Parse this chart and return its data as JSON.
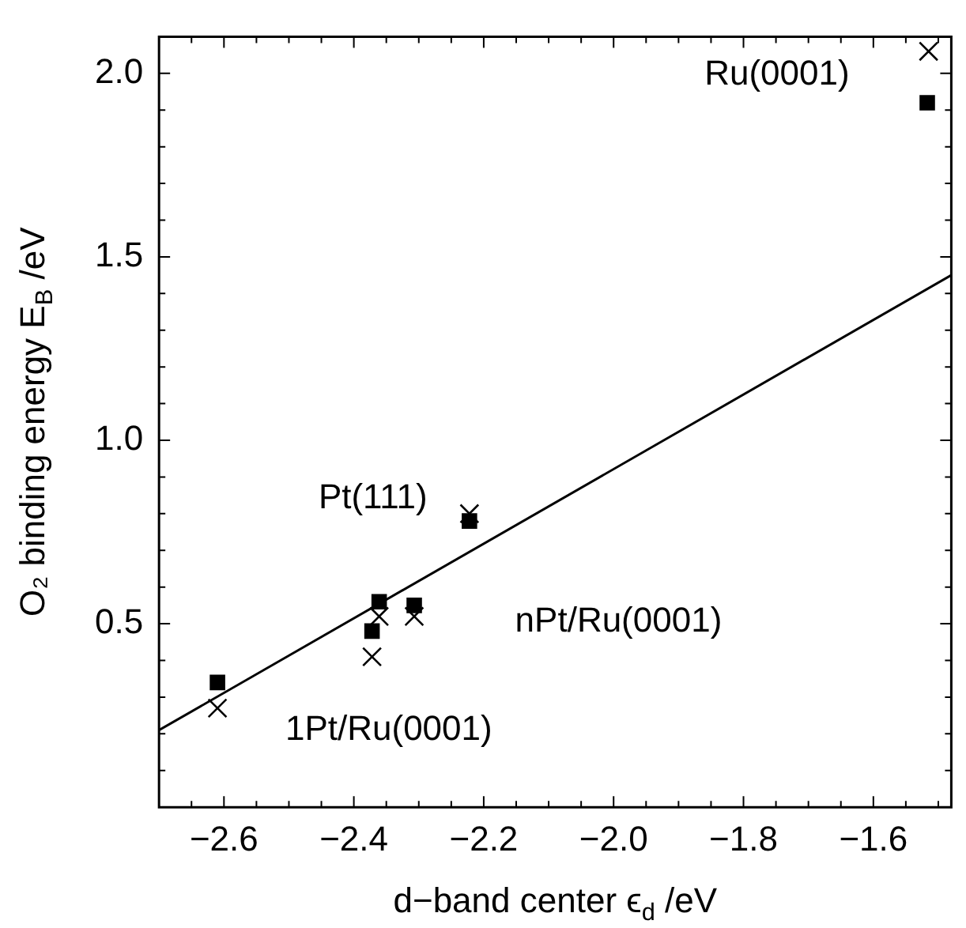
{
  "chart_data": {
    "type": "scatter",
    "xlabel": "d−band center ϵ$_{d}$ /eV",
    "ylabel": "O₂ binding energy E$_{B}$ /eV",
    "xlim": [
      -2.7,
      -1.48
    ],
    "ylim": [
      0,
      2.1
    ],
    "xticks": [
      {
        "value": -2.65,
        "label": null
      },
      {
        "value": -2.6,
        "label": "−2.6"
      },
      {
        "value": -2.55,
        "label": null
      },
      {
        "value": -2.5,
        "label": null
      },
      {
        "value": -2.45,
        "label": null
      },
      {
        "value": -2.4,
        "label": "−2.4"
      },
      {
        "value": -2.35,
        "label": null
      },
      {
        "value": -2.3,
        "label": null
      },
      {
        "value": -2.25,
        "label": null
      },
      {
        "value": -2.2,
        "label": "−2.2"
      },
      {
        "value": -2.15,
        "label": null
      },
      {
        "value": -2.1,
        "label": null
      },
      {
        "value": -2.05,
        "label": null
      },
      {
        "value": -2.0,
        "label": "−2.0"
      },
      {
        "value": -1.95,
        "label": null
      },
      {
        "value": -1.9,
        "label": null
      },
      {
        "value": -1.85,
        "label": null
      },
      {
        "value": -1.8,
        "label": "−1.8"
      },
      {
        "value": -1.75,
        "label": null
      },
      {
        "value": -1.7,
        "label": null
      },
      {
        "value": -1.65,
        "label": null
      },
      {
        "value": -1.6,
        "label": "−1.6"
      },
      {
        "value": -1.55,
        "label": null
      },
      {
        "value": -1.5,
        "label": null
      }
    ],
    "yticks": [
      {
        "value": 0.1,
        "label": null
      },
      {
        "value": 0.2,
        "label": null
      },
      {
        "value": 0.3,
        "label": null
      },
      {
        "value": 0.4,
        "label": null
      },
      {
        "value": 0.5,
        "label": "0.5"
      },
      {
        "value": 0.6,
        "label": null
      },
      {
        "value": 0.7,
        "label": null
      },
      {
        "value": 0.8,
        "label": null
      },
      {
        "value": 0.9,
        "label": null
      },
      {
        "value": 1.0,
        "label": "1.0"
      },
      {
        "value": 1.1,
        "label": null
      },
      {
        "value": 1.2,
        "label": null
      },
      {
        "value": 1.3,
        "label": null
      },
      {
        "value": 1.4,
        "label": null
      },
      {
        "value": 1.5,
        "label": "1.5"
      },
      {
        "value": 1.6,
        "label": null
      },
      {
        "value": 1.7,
        "label": null
      },
      {
        "value": 1.8,
        "label": null
      },
      {
        "value": 1.9,
        "label": null
      },
      {
        "value": 2.0,
        "label": "2.0"
      }
    ],
    "grid": false,
    "legend": false,
    "series": [
      {
        "type": "scatter",
        "marker": "square",
        "color": "#000000",
        "x": [
          -2.61,
          -2.372,
          -2.361,
          -2.307,
          -2.222,
          -1.517
        ],
        "values": [
          0.34,
          0.48,
          0.56,
          0.55,
          0.78,
          1.92
        ]
      },
      {
        "type": "scatter",
        "marker": "cross",
        "color": "#000000",
        "x": [
          -2.61,
          -2.372,
          -2.361,
          -2.307,
          -2.222,
          -1.515
        ],
        "values": [
          0.27,
          0.41,
          0.52,
          0.52,
          0.8,
          2.06
        ]
      },
      {
        "type": "line",
        "marker": "none",
        "line_style": "solid",
        "color": "#000000",
        "x": [
          -2.7,
          -1.48
        ],
        "values": [
          0.21,
          1.45
        ]
      }
    ],
    "annotations": [
      "Ru(0001)",
      "Pt(111)",
      "nPt/Ru(0001)",
      "1Pt/Ru(0001)"
    ]
  }
}
